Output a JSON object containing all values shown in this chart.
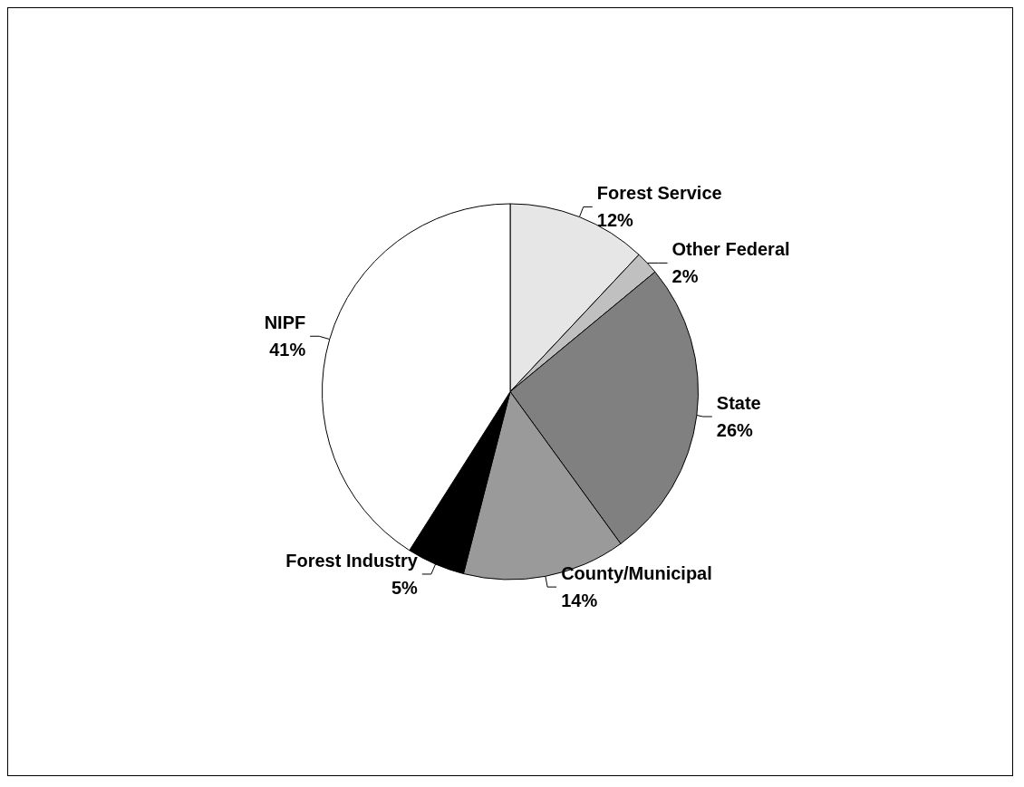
{
  "chart_data": {
    "type": "pie",
    "categories": [
      "Forest Service",
      "Other Federal",
      "State",
      "County/Municipal",
      "Forest Industry",
      "NIPF"
    ],
    "values": [
      12,
      2,
      26,
      14,
      5,
      41
    ],
    "colors": [
      "#e6e6e6",
      "#c0c0c0",
      "#808080",
      "#9a9a9a",
      "#000000",
      "#ffffff"
    ],
    "value_labels": [
      "12%",
      "2%",
      "26%",
      "14%",
      "5%",
      "41%"
    ],
    "legend": false
  }
}
